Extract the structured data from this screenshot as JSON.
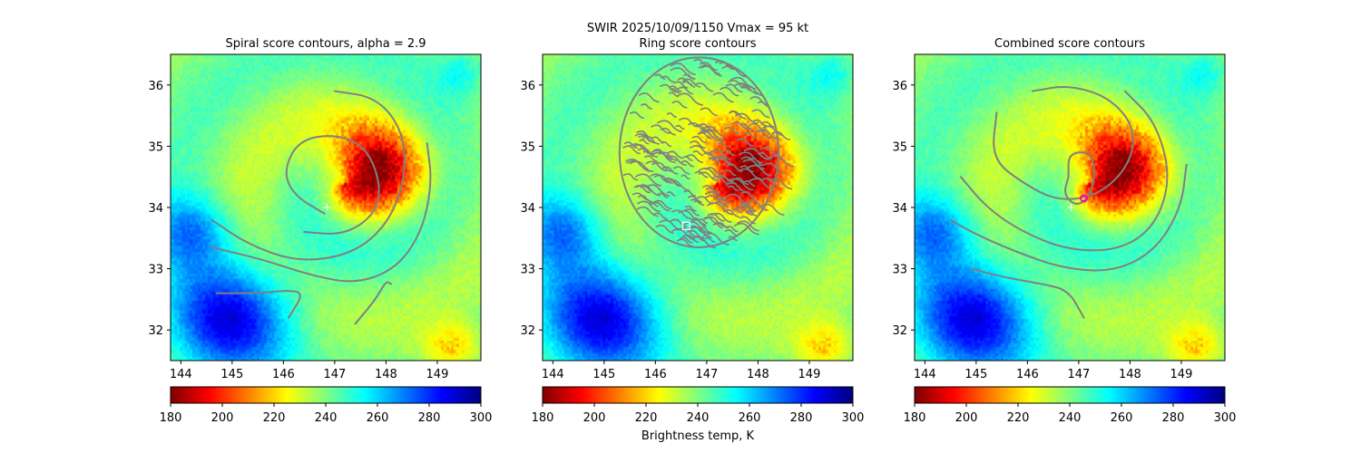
{
  "figure": {
    "suptitle_line1": "SWIR  2025/10/09/1150    Vmax = 95 kt",
    "colorbar_label": "Brightness temp, K"
  },
  "colors": {
    "jet_stops": [
      "#00007f",
      "#0000ff",
      "#007fff",
      "#00ffff",
      "#7fff7f",
      "#ffff00",
      "#ff7f00",
      "#ff0000",
      "#7f0000"
    ],
    "contour": "#808080",
    "center_plus": "#ffffff",
    "ring_marker": "#ffffff",
    "combined_marker": "#ff00aa"
  },
  "chart_data": [
    {
      "type": "heatmap",
      "title": "Spiral score contours, alpha =  2.9",
      "xlim": [
        143.8,
        149.85
      ],
      "ylim": [
        31.5,
        36.5
      ],
      "xticks": [
        144,
        145,
        146,
        147,
        148,
        149
      ],
      "yticks": [
        32,
        33,
        34,
        35,
        36
      ],
      "colorbar": {
        "min": 180,
        "max": 300,
        "ticks": [
          180,
          200,
          220,
          240,
          260,
          280,
          300
        ],
        "label": ""
      },
      "center_marker": {
        "x": 146.85,
        "y": 34.0,
        "shape": "plus"
      },
      "contours": [
        [
          [
            146.8,
            33.9
          ],
          [
            146.2,
            34.2
          ],
          [
            146.0,
            34.6
          ],
          [
            146.3,
            35.1
          ],
          [
            147.0,
            35.2
          ],
          [
            147.6,
            35.0
          ],
          [
            147.9,
            34.4
          ],
          [
            147.8,
            33.9
          ],
          [
            147.2,
            33.55
          ],
          [
            146.4,
            33.6
          ]
        ],
        [
          [
            147.0,
            35.9
          ],
          [
            147.8,
            35.8
          ],
          [
            148.3,
            35.3
          ],
          [
            148.4,
            34.6
          ],
          [
            148.1,
            33.8
          ],
          [
            147.4,
            33.25
          ],
          [
            146.3,
            33.1
          ],
          [
            145.3,
            33.4
          ],
          [
            144.6,
            33.8
          ]
        ],
        [
          [
            148.8,
            35.05
          ],
          [
            148.9,
            34.4
          ],
          [
            148.7,
            33.6
          ],
          [
            148.2,
            33.0
          ],
          [
            147.4,
            32.75
          ],
          [
            146.5,
            32.9
          ],
          [
            145.6,
            33.15
          ],
          [
            144.6,
            33.35
          ]
        ],
        [
          [
            144.7,
            32.6
          ],
          [
            145.5,
            32.6
          ],
          [
            146.1,
            32.65
          ],
          [
            146.4,
            32.6
          ],
          [
            146.1,
            32.2
          ]
        ],
        [
          [
            147.4,
            32.1
          ],
          [
            147.8,
            32.5
          ],
          [
            148.0,
            32.8
          ],
          [
            148.1,
            32.75
          ]
        ]
      ]
    },
    {
      "type": "heatmap",
      "title": "Ring score contours",
      "xlim": [
        143.8,
        149.85
      ],
      "ylim": [
        31.5,
        36.5
      ],
      "xticks": [
        144,
        145,
        146,
        147,
        148,
        149
      ],
      "yticks": [
        32,
        33,
        34,
        35,
        36
      ],
      "colorbar": {
        "min": 180,
        "max": 300,
        "ticks": [
          180,
          200,
          220,
          240,
          260,
          280,
          300
        ],
        "label": "Brightness temp, K"
      },
      "ring_region": {
        "center": [
          146.85,
          34.9
        ],
        "radius_deg": 1.55
      },
      "center_marker": {
        "x": 146.6,
        "y": 33.7,
        "shape": "square"
      }
    },
    {
      "type": "heatmap",
      "title": "Combined score contours",
      "xlim": [
        143.8,
        149.85
      ],
      "ylim": [
        31.5,
        36.5
      ],
      "xticks": [
        144,
        145,
        146,
        147,
        148,
        149
      ],
      "yticks": [
        32,
        33,
        34,
        35,
        36
      ],
      "colorbar": {
        "min": 180,
        "max": 300,
        "ticks": [
          180,
          200,
          220,
          240,
          260,
          280,
          300
        ],
        "label": ""
      },
      "center_marker": {
        "x": 146.85,
        "y": 34.0,
        "shape": "plus"
      },
      "combined_marker": {
        "x": 147.1,
        "y": 34.15,
        "shape": "circle"
      },
      "contours": [
        [
          [
            146.8,
            34.5
          ],
          [
            146.8,
            34.9
          ],
          [
            147.3,
            34.9
          ],
          [
            147.3,
            34.3
          ],
          [
            147.0,
            34.0
          ],
          [
            146.7,
            34.2
          ],
          [
            146.8,
            34.5
          ]
        ],
        [
          [
            145.4,
            35.55
          ],
          [
            145.3,
            34.8
          ],
          [
            145.9,
            34.4
          ],
          [
            146.6,
            34.1
          ],
          [
            147.4,
            34.2
          ],
          [
            148.0,
            34.7
          ],
          [
            148.1,
            35.3
          ],
          [
            147.6,
            35.8
          ],
          [
            146.8,
            36.0
          ],
          [
            146.1,
            35.9
          ]
        ],
        [
          [
            147.9,
            35.9
          ],
          [
            148.5,
            35.4
          ],
          [
            148.8,
            34.5
          ],
          [
            148.5,
            33.7
          ],
          [
            147.8,
            33.3
          ],
          [
            146.8,
            33.3
          ],
          [
            145.9,
            33.6
          ],
          [
            145.2,
            34.0
          ],
          [
            144.7,
            34.5
          ]
        ],
        [
          [
            149.1,
            34.7
          ],
          [
            149.0,
            34.0
          ],
          [
            148.5,
            33.3
          ],
          [
            147.7,
            32.95
          ],
          [
            146.7,
            33.0
          ],
          [
            145.7,
            33.3
          ],
          [
            144.9,
            33.6
          ],
          [
            144.5,
            33.8
          ]
        ],
        [
          [
            144.9,
            33.0
          ],
          [
            145.6,
            32.85
          ],
          [
            146.3,
            32.75
          ],
          [
            146.8,
            32.65
          ],
          [
            147.1,
            32.2
          ]
        ]
      ]
    }
  ]
}
